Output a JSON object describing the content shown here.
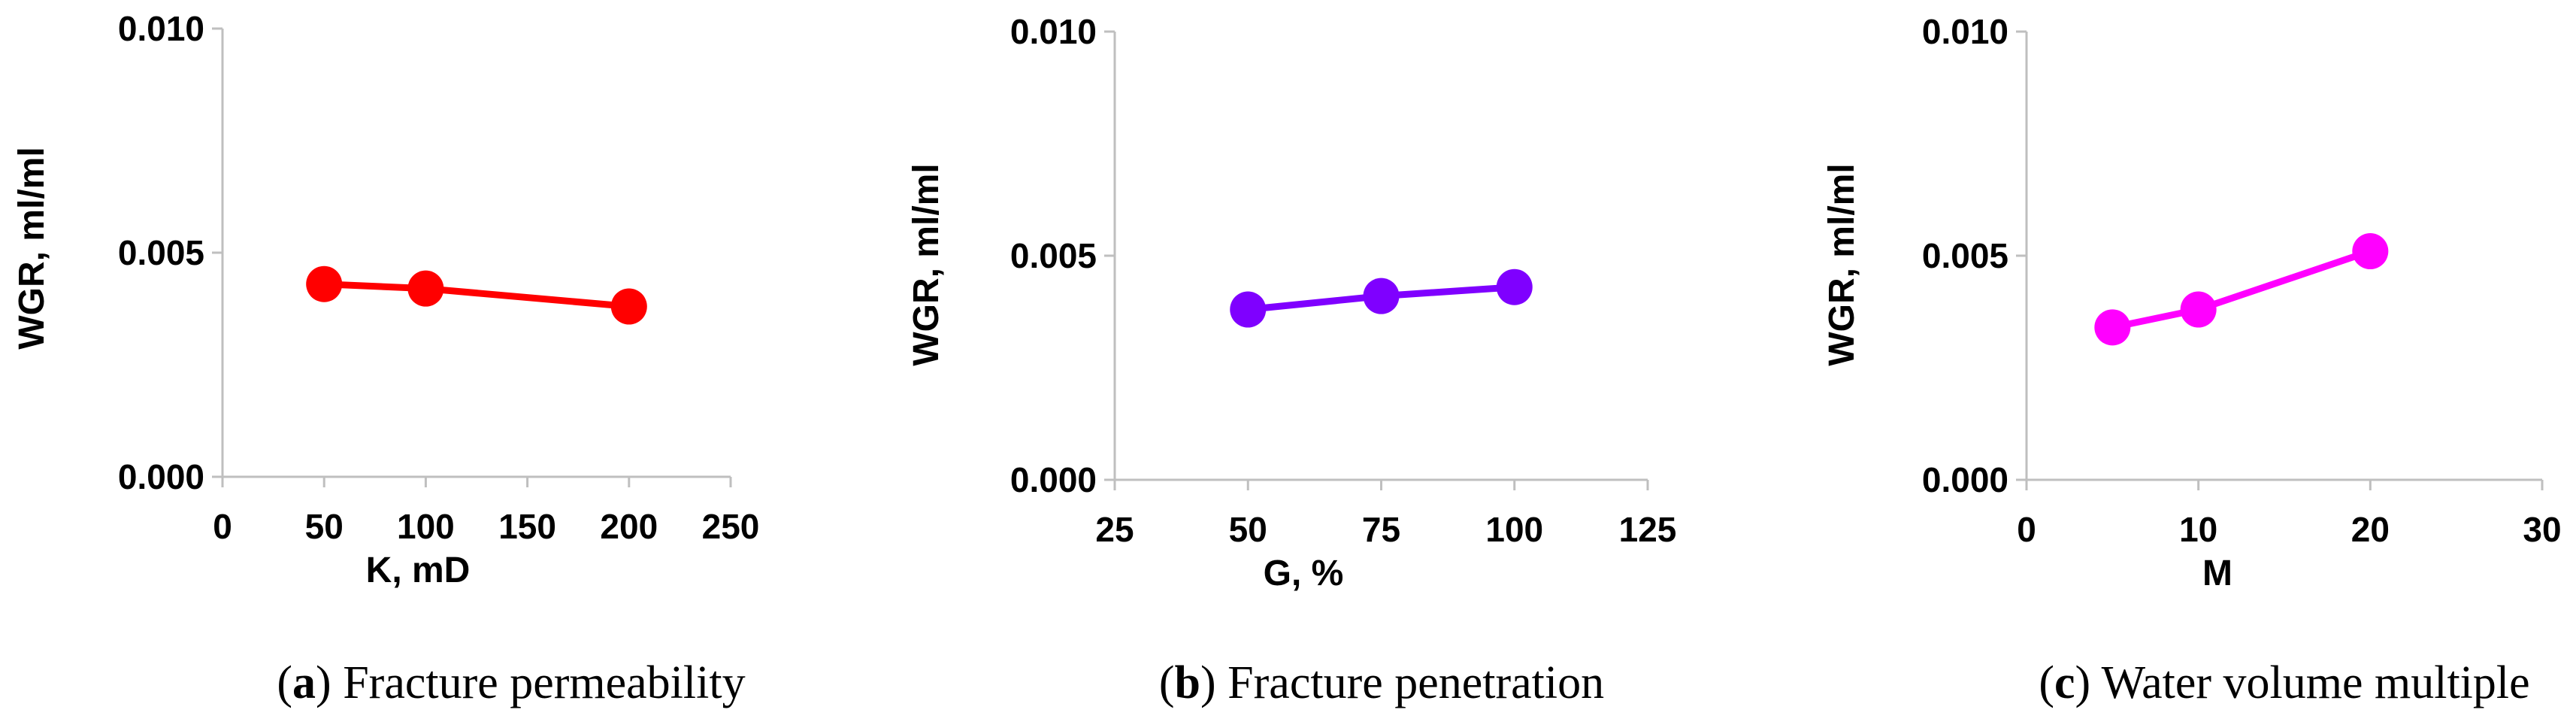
{
  "chart_data": [
    {
      "type": "line",
      "panel_letter": "a",
      "caption": "Fracture permeability",
      "xlabel": "K,  mD",
      "ylabel": "WGR,  ml/ml",
      "xlim": [
        0,
        250
      ],
      "ylim": [
        0.0,
        0.01
      ],
      "x_ticks": [
        "0",
        "50",
        "100",
        "150",
        "200",
        "250"
      ],
      "y_ticks": [
        "0.000",
        "0.005",
        "0.010"
      ],
      "grid": false,
      "color": "#ff0000",
      "series": [
        {
          "x": [
            50,
            100,
            200
          ],
          "y": [
            0.0043,
            0.0042,
            0.0038
          ]
        }
      ]
    },
    {
      "type": "line",
      "panel_letter": "b",
      "caption": "Fracture penetration",
      "xlabel": "G,  %",
      "ylabel": "WGR,  ml/ml",
      "xlim": [
        25,
        125
      ],
      "ylim": [
        0.0,
        0.01
      ],
      "x_ticks": [
        "25",
        "50",
        "75",
        "100",
        "125"
      ],
      "y_ticks": [
        "0.000",
        "0.005",
        "0.010"
      ],
      "grid": false,
      "color": "#7f00ff",
      "series": [
        {
          "x": [
            50,
            75,
            100
          ],
          "y": [
            0.0038,
            0.0041,
            0.0043
          ]
        }
      ]
    },
    {
      "type": "line",
      "panel_letter": "c",
      "caption": "Water volume multiple",
      "xlabel": "M",
      "ylabel": "WGR,  ml/ml",
      "xlim": [
        0,
        30
      ],
      "ylim": [
        0.0,
        0.01
      ],
      "x_ticks": [
        "0",
        "10",
        "20",
        "30"
      ],
      "y_ticks": [
        "0.000",
        "0.005",
        "0.010"
      ],
      "grid": false,
      "color": "#ff00ff",
      "series": [
        {
          "x": [
            5,
            10,
            20
          ],
          "y": [
            0.0034,
            0.0038,
            0.0051
          ]
        }
      ]
    }
  ]
}
